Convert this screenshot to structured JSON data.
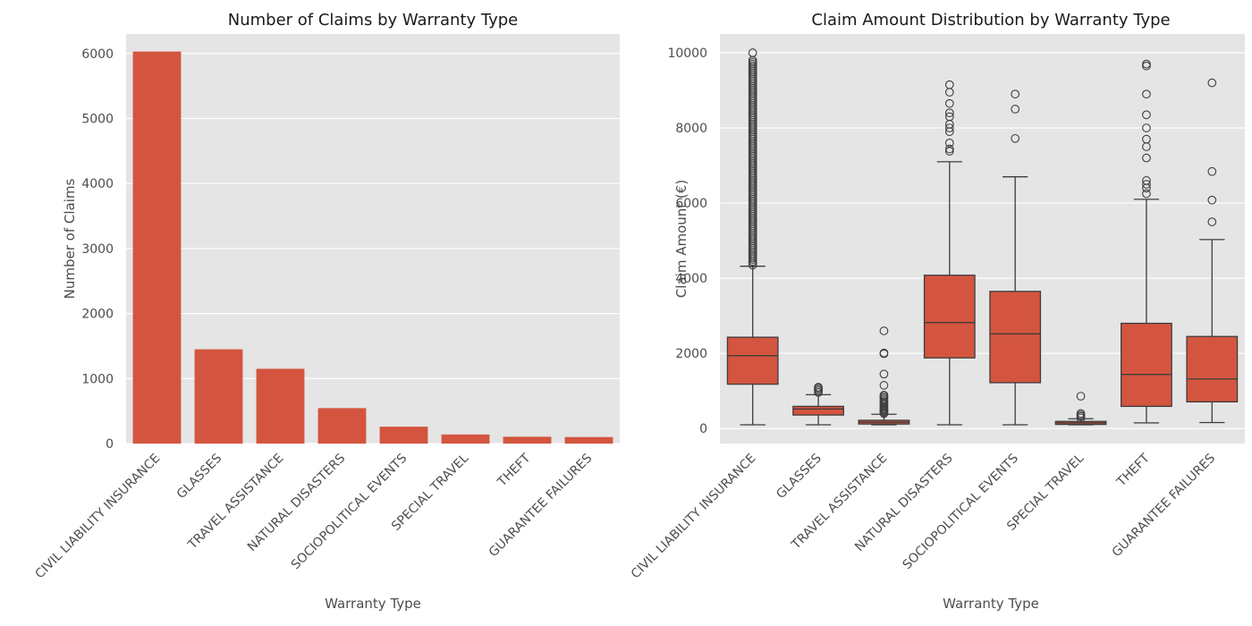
{
  "chart_data": [
    {
      "type": "bar",
      "title": "Number of Claims by Warranty Type",
      "xlabel": "Warranty Type",
      "ylabel": "Number of Claims",
      "ylim": [
        0,
        6300
      ],
      "yticks": [
        0,
        1000,
        2000,
        3000,
        4000,
        5000,
        6000
      ],
      "grid": true,
      "categories": [
        "CIVIL LIABILITY INSURANCE",
        "GLASSES",
        "TRAVEL ASSISTANCE",
        "NATURAL DISASTERS",
        "SOCIOPOLITICAL EVENTS",
        "SPECIAL TRAVEL",
        "THEFT",
        "GUARANTEE FAILURES"
      ],
      "values": [
        6030,
        1450,
        1150,
        545,
        260,
        140,
        105,
        100
      ],
      "color": "#d4553f",
      "background": "#e5e5e5"
    },
    {
      "type": "box",
      "title": "Claim Amount Distribution by Warranty Type",
      "xlabel": "Warranty Type",
      "ylabel": "Claim Amount (€)",
      "ylim": [
        -400,
        10500
      ],
      "yticks": [
        0,
        2000,
        4000,
        6000,
        8000,
        10000
      ],
      "grid": true,
      "categories": [
        "CIVIL LIABILITY INSURANCE",
        "GLASSES",
        "TRAVEL ASSISTANCE",
        "NATURAL DISASTERS",
        "SOCIOPOLITICAL EVENTS",
        "SPECIAL TRAVEL",
        "THEFT",
        "GUARANTEE FAILURES"
      ],
      "boxes": [
        {
          "min": 100,
          "q1": 1180,
          "median": 1940,
          "q3": 2430,
          "max": 4320,
          "outliers": [
            4350,
            4400,
            4450,
            4500,
            4550,
            4600,
            4650,
            4700,
            4750,
            4800,
            4850,
            4900,
            4950,
            5000,
            5050,
            5100,
            5150,
            5200,
            5250,
            5300,
            5350,
            5400,
            5450,
            5500,
            5550,
            5600,
            5650,
            5700,
            5750,
            5800,
            5850,
            5900,
            5950,
            6000,
            6050,
            6100,
            6150,
            6200,
            6250,
            6300,
            6350,
            6400,
            6450,
            6500,
            6550,
            6600,
            6650,
            6700,
            6750,
            6800,
            6850,
            6900,
            6950,
            7000,
            7050,
            7100,
            7150,
            7200,
            7250,
            7300,
            7350,
            7400,
            7450,
            7500,
            7550,
            7600,
            7650,
            7700,
            7750,
            7800,
            7850,
            7900,
            7950,
            8000,
            8050,
            8100,
            8150,
            8200,
            8250,
            8300,
            8350,
            8400,
            8450,
            8500,
            8550,
            8600,
            8650,
            8700,
            8750,
            8800,
            8850,
            8900,
            8950,
            9000,
            9050,
            9100,
            9150,
            9200,
            9250,
            9300,
            9350,
            9400,
            9450,
            9500,
            9550,
            9600,
            9650,
            9700,
            9750,
            9800,
            10000
          ]
        },
        {
          "min": 100,
          "q1": 360,
          "median": 520,
          "q3": 590,
          "max": 900,
          "outliers": [
            960,
            1000,
            1040,
            1080,
            1100
          ]
        },
        {
          "min": 100,
          "q1": 120,
          "median": 170,
          "q3": 220,
          "max": 380,
          "outliers": [
            400,
            430,
            460,
            490,
            520,
            550,
            580,
            620,
            660,
            700,
            740,
            780,
            820,
            860,
            890,
            1150,
            1450,
            1990,
            2010,
            2600
          ]
        },
        {
          "min": 100,
          "q1": 1880,
          "median": 2820,
          "q3": 4080,
          "max": 7100,
          "outliers": [
            7380,
            7440,
            7600,
            7900,
            8000,
            8100,
            8300,
            8400,
            8650,
            8950,
            9150
          ]
        },
        {
          "min": 100,
          "q1": 1220,
          "median": 2520,
          "q3": 3650,
          "max": 6700,
          "outliers": [
            7720,
            8500,
            8900
          ]
        },
        {
          "min": 100,
          "q1": 110,
          "median": 150,
          "q3": 190,
          "max": 260,
          "outliers": [
            280,
            320,
            360,
            400,
            860
          ]
        },
        {
          "min": 150,
          "q1": 590,
          "median": 1440,
          "q3": 2800,
          "max": 6100,
          "outliers": [
            6250,
            6400,
            6500,
            6600,
            7200,
            7500,
            7700,
            8000,
            8350,
            8900,
            9650,
            9700
          ]
        },
        {
          "min": 160,
          "q1": 710,
          "median": 1320,
          "q3": 2450,
          "max": 5030,
          "outliers": [
            5500,
            6080,
            6840,
            9200
          ]
        }
      ],
      "color": "#d4553f",
      "background": "#e5e5e5"
    }
  ]
}
